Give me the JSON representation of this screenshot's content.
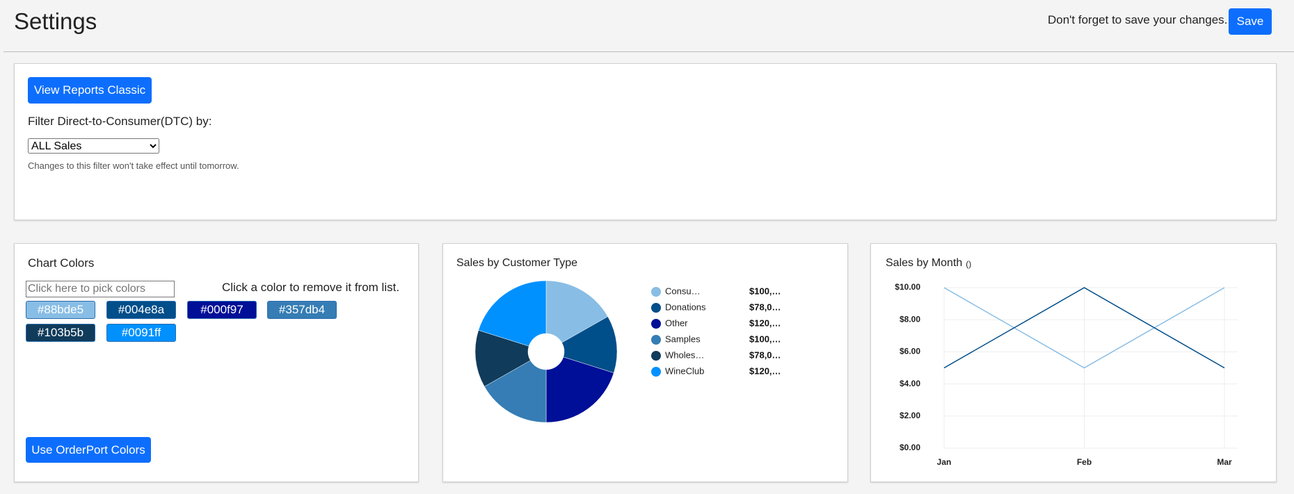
{
  "header": {
    "title": "Settings",
    "reminder": "Don't forget to save your changes.",
    "save_button": "Save"
  },
  "filter_panel": {
    "button": "View Reports Classic",
    "label": "Filter Direct-to-Consumer(DTC) by:",
    "select_value": "ALL Sales",
    "note": "Changes to this filter won't take effect until tomorrow."
  },
  "chart_colors": {
    "title": "Chart Colors",
    "placeholder": "Click here to pick colors",
    "hint": "Click a color to remove it from list.",
    "chips": [
      "#88bde5",
      "#004e8a",
      "#000f97",
      "#357db4",
      "#103b5b",
      "#0091ff"
    ],
    "button": "Use OrderPort Colors"
  },
  "chart_data": [
    {
      "type": "pie",
      "title": "Sales by Customer Type",
      "categories": [
        "Consu…",
        "Donations",
        "Other",
        "Samples",
        "Wholes…",
        "WineClub"
      ],
      "values": [
        100000,
        78000,
        120000,
        100000,
        78000,
        120000
      ],
      "value_labels": [
        "$100,…",
        "$78,0…",
        "$120,…",
        "$100,…",
        "$78,0…",
        "$120,…"
      ],
      "colors": [
        "#88bde5",
        "#004e8a",
        "#000f97",
        "#357db4",
        "#103b5b",
        "#0091ff"
      ]
    },
    {
      "type": "line",
      "title": "Sales by Month",
      "subtitle": "()",
      "categories": [
        "Jan",
        "Feb",
        "Mar"
      ],
      "series": [
        {
          "color": "#88bde5",
          "values": [
            10,
            5,
            10
          ]
        },
        {
          "color": "#004e8a",
          "values": [
            5,
            10,
            5
          ]
        }
      ],
      "ylim": [
        0,
        10
      ],
      "yticks": [
        {
          "value": 0,
          "label": "$0.00"
        },
        {
          "value": 2,
          "label": "$2.00"
        },
        {
          "value": 4,
          "label": "$4.00"
        },
        {
          "value": 6,
          "label": "$6.00"
        },
        {
          "value": 8,
          "label": "$8.00"
        },
        {
          "value": 10,
          "label": "$10.00"
        }
      ],
      "grid": true
    }
  ]
}
